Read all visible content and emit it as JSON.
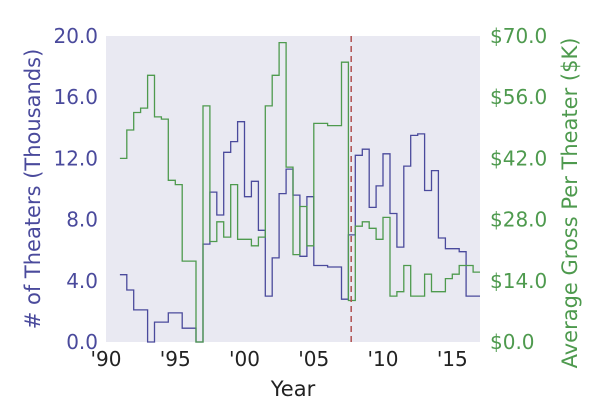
{
  "colors": {
    "plot_bg": "#e9e9f2",
    "left": "#4a4a9c",
    "right": "#4e9a4e",
    "text": "#222222",
    "vline": "#b05050"
  },
  "chart_data": {
    "type": "line",
    "xlabel": "Year",
    "ylabel_left": "# of Theaters (Thousands)",
    "ylabel_right": "Average Gross Per Theater ($K)",
    "xlim": [
      1990,
      2017
    ],
    "ylim_left": [
      0,
      20
    ],
    "ylim_right": [
      0,
      70
    ],
    "x_ticks": [
      1990,
      1995,
      2000,
      2005,
      2010,
      2015
    ],
    "x_tick_labels": [
      "'90",
      "'95",
      "'00",
      "'05",
      "'10",
      "'15"
    ],
    "y_left_ticks": [
      0,
      4,
      8,
      12,
      16,
      20
    ],
    "y_left_tick_labels": [
      "0.0",
      "4.0",
      "8.0",
      "12.0",
      "16.0",
      "20.0"
    ],
    "y_right_ticks": [
      0,
      14,
      28,
      42,
      56,
      70
    ],
    "y_right_tick_labels": [
      "$0.0",
      "$14.0",
      "$28.0",
      "$42.0",
      "$56.0",
      "$70.0"
    ],
    "vertical_line_x": 2007.7,
    "series": [
      {
        "name": "theaters",
        "axis": "left",
        "step": true,
        "x": [
          1991.0,
          1991.5,
          1992.0,
          1992.5,
          1993.0,
          1993.5,
          1994.0,
          1994.5,
          1995.0,
          1995.5,
          1996.0,
          1996.5,
          1997.0,
          1997.5,
          1998.0,
          1998.5,
          1999.0,
          1999.5,
          2000.0,
          2000.5,
          2001.0,
          2001.5,
          2002.0,
          2002.5,
          2003.0,
          2003.5,
          2004.0,
          2004.5,
          2005.0,
          2005.5,
          2006.0,
          2006.5,
          2007.0,
          2007.5,
          2008.0,
          2008.5,
          2009.0,
          2009.5,
          2010.0,
          2010.5,
          2011.0,
          2011.5,
          2012.0,
          2012.5,
          2013.0,
          2013.5,
          2014.0,
          2014.5,
          2015.0,
          2015.5,
          2016.0,
          2016.5
        ],
        "y": [
          4.4,
          3.4,
          2.1,
          2.1,
          0.0,
          1.3,
          1.3,
          1.9,
          1.9,
          0.9,
          0.9,
          0.0,
          6.4,
          9.8,
          8.3,
          12.4,
          13.1,
          14.4,
          9.5,
          10.5,
          7.3,
          3.0,
          5.5,
          9.7,
          11.3,
          9.6,
          5.6,
          9.5,
          5.0,
          5.0,
          4.9,
          4.9,
          2.8,
          7.0,
          12.2,
          12.6,
          8.8,
          10.2,
          12.3,
          8.4,
          6.2,
          11.5,
          13.5,
          13.6,
          9.9,
          11.2,
          6.8,
          6.1,
          6.1,
          5.9,
          3.0,
          3.0
        ]
      },
      {
        "name": "avg_gross",
        "axis": "right",
        "step": true,
        "x": [
          1991.0,
          1991.5,
          1992.0,
          1992.5,
          1993.0,
          1993.5,
          1994.0,
          1994.5,
          1995.0,
          1995.5,
          1996.0,
          1996.5,
          1997.0,
          1997.5,
          1998.0,
          1998.5,
          1999.0,
          1999.5,
          2000.0,
          2000.5,
          2001.0,
          2001.5,
          2002.0,
          2002.5,
          2003.0,
          2003.5,
          2004.0,
          2004.5,
          2005.0,
          2005.5,
          2006.0,
          2006.5,
          2007.0,
          2007.5,
          2008.0,
          2008.5,
          2009.0,
          2009.5,
          2010.0,
          2010.5,
          2011.0,
          2011.5,
          2012.0,
          2012.5,
          2013.0,
          2013.5,
          2014.0,
          2014.5,
          2015.0,
          2015.5,
          2016.0,
          2016.5
        ],
        "y": [
          42.0,
          48.5,
          52.5,
          53.5,
          61.0,
          51.5,
          51.0,
          37.0,
          36.0,
          18.5,
          18.5,
          0.0,
          54.0,
          23.0,
          27.5,
          24.0,
          36.0,
          23.5,
          23.5,
          22.0,
          24.0,
          54.0,
          61.0,
          68.5,
          40.0,
          20.0,
          31.0,
          22.0,
          50.0,
          50.0,
          49.5,
          49.5,
          64.0,
          9.5,
          26.5,
          27.5,
          26.0,
          23.5,
          28.5,
          10.5,
          11.5,
          17.5,
          10.5,
          10.5,
          15.5,
          11.5,
          11.5,
          14.5,
          15.5,
          17.5,
          17.5,
          16.0
        ]
      }
    ]
  }
}
